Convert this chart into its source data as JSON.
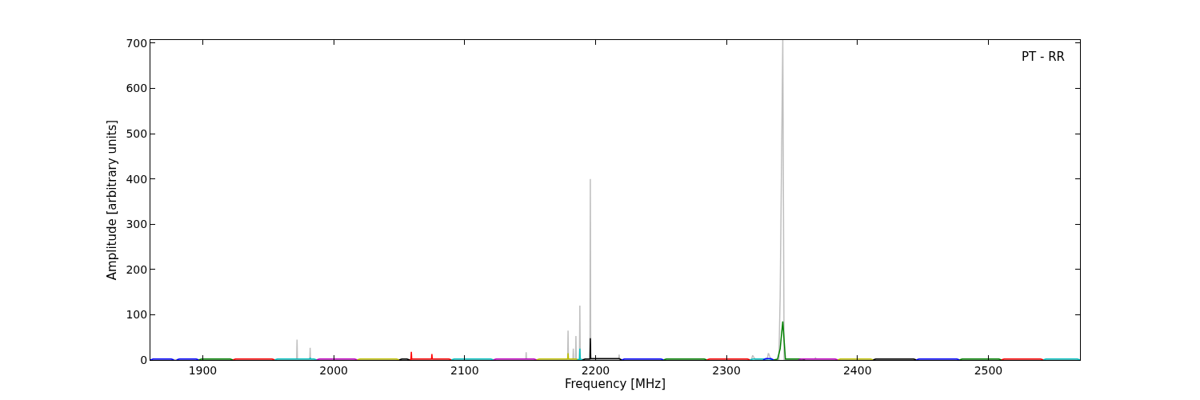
{
  "chart_data": {
    "type": "line",
    "xlabel": "Frequency [MHz]",
    "ylabel": "Amplitude [arbitrary units]",
    "annotations": [
      "PT - RR"
    ],
    "xlim": [
      1860,
      2570
    ],
    "ylim": [
      0,
      707
    ],
    "xticks": [
      1900,
      2000,
      2100,
      2200,
      2300,
      2400,
      2500
    ],
    "yticks": [
      0,
      100,
      200,
      300,
      400,
      500,
      600,
      700
    ],
    "marker": "none",
    "line_style": "solid",
    "series": [
      {
        "color": "#bfbfbf",
        "x": [
          1860,
          1971.7,
          1972,
          1972.3,
          1981.7,
          1982,
          1982.3,
          2146.7,
          2147,
          2147.3,
          2178.7,
          2179,
          2179.3,
          2182.7,
          2183,
          2183.3,
          2184.7,
          2185,
          2185.3,
          2187.7,
          2188,
          2188.3,
          2195.7,
          2196,
          2196.3,
          2217.7,
          2218,
          2218.3,
          2319,
          2320,
          2322,
          2331,
          2332,
          2334,
          2340,
          2341,
          2343,
          2344,
          2346,
          2367.7,
          2368,
          2368.3,
          2570
        ],
        "values": [
          1,
          1,
          45,
          1,
          1,
          27,
          1,
          1,
          17,
          1,
          1,
          65,
          1,
          1,
          25,
          1,
          1,
          53,
          1,
          1,
          120,
          1,
          1,
          400,
          1,
          1,
          12,
          1,
          1,
          10,
          1,
          1,
          15,
          1,
          1,
          140,
          707,
          1,
          1,
          1,
          6,
          1,
          1
        ]
      },
      {
        "color": "#0000ff",
        "x": [
          1860,
          1862,
          1876,
          1878
        ],
        "values": [
          0,
          2,
          2,
          0
        ]
      },
      {
        "color": "#0000ff",
        "x": [
          1880,
          1882,
          1895,
          1897
        ],
        "values": [
          0,
          2,
          2,
          0
        ]
      },
      {
        "color": "#008000",
        "x": [
          1897,
          1899,
          1921,
          1923
        ],
        "values": [
          0,
          2,
          2,
          0
        ]
      },
      {
        "color": "#ff0000",
        "x": [
          1923,
          1925,
          1953,
          1955
        ],
        "values": [
          0,
          2,
          2,
          0
        ]
      },
      {
        "color": "#00bfbf",
        "x": [
          1955,
          1957,
          1981.7,
          1982,
          1982.3,
          1985,
          1987
        ],
        "values": [
          0,
          2,
          2,
          5,
          2,
          2,
          0
        ]
      },
      {
        "color": "#bf00bf",
        "x": [
          1987,
          1989,
          2016,
          2018
        ],
        "values": [
          0,
          2,
          2,
          0
        ]
      },
      {
        "color": "#bfbf00",
        "x": [
          2018,
          2020,
          2048,
          2050
        ],
        "values": [
          0,
          2,
          2,
          0
        ]
      },
      {
        "color": "#000000",
        "x": [
          2050,
          2052,
          2056,
          2058
        ],
        "values": [
          0,
          2,
          2,
          0
        ]
      },
      {
        "color": "#ff0000",
        "x": [
          2058,
          2059,
          2059.3,
          2059.6,
          2074.7,
          2075,
          2075.3,
          2088,
          2090
        ],
        "values": [
          1,
          1,
          18,
          2,
          2,
          13,
          2,
          2,
          0
        ]
      },
      {
        "color": "#00bfbf",
        "x": [
          2090,
          2092,
          2120,
          2122
        ],
        "values": [
          0,
          2,
          2,
          0
        ]
      },
      {
        "color": "#bf00bf",
        "x": [
          2122,
          2124,
          2153,
          2155
        ],
        "values": [
          0,
          2,
          2,
          0
        ]
      },
      {
        "color": "#bfbf00",
        "x": [
          2155,
          2157,
          2178.7,
          2179,
          2179.3,
          2185,
          2187
        ],
        "values": [
          0,
          2,
          2,
          15,
          2,
          2,
          0
        ]
      },
      {
        "color": "#00bfbf",
        "x": [
          2186,
          2187.7,
          2188,
          2188.3,
          2190
        ],
        "values": [
          1,
          1,
          25,
          2,
          1
        ]
      },
      {
        "color": "#000000",
        "x": [
          2190,
          2192,
          2195.7,
          2196,
          2196.3,
          2218,
          2220
        ],
        "values": [
          0,
          2,
          2,
          48,
          3,
          3,
          0
        ]
      },
      {
        "color": "#0000ff",
        "x": [
          2220,
          2222,
          2250,
          2252
        ],
        "values": [
          0,
          2,
          2,
          0
        ]
      },
      {
        "color": "#008000",
        "x": [
          2252,
          2254,
          2283,
          2285
        ],
        "values": [
          0,
          2,
          2,
          0
        ]
      },
      {
        "color": "#ff0000",
        "x": [
          2285,
          2287,
          2316,
          2318
        ],
        "values": [
          0,
          2,
          2,
          0
        ]
      },
      {
        "color": "#00bfbf",
        "x": [
          2318,
          2320,
          2333,
          2335
        ],
        "values": [
          0,
          2,
          2,
          0
        ]
      },
      {
        "color": "#0000ff",
        "x": [
          2328,
          2330,
          2334,
          2336
        ],
        "values": [
          0,
          3,
          3,
          0
        ]
      },
      {
        "color": "#008000",
        "x": [
          2336,
          2339,
          2341,
          2343,
          2345,
          2347,
          2358,
          2360
        ],
        "values": [
          0,
          2,
          25,
          85,
          2,
          2,
          2,
          0
        ]
      },
      {
        "color": "#bf00bf",
        "x": [
          2355,
          2357,
          2383,
          2385
        ],
        "values": [
          0,
          2,
          2,
          0
        ]
      },
      {
        "color": "#bfbf00",
        "x": [
          2385,
          2387,
          2410,
          2412
        ],
        "values": [
          0,
          2,
          2,
          0
        ]
      },
      {
        "color": "#000000",
        "x": [
          2412,
          2414,
          2443,
          2445
        ],
        "values": [
          0,
          2,
          2,
          0
        ]
      },
      {
        "color": "#0000ff",
        "x": [
          2445,
          2447,
          2476,
          2478
        ],
        "values": [
          0,
          2,
          2,
          0
        ]
      },
      {
        "color": "#008000",
        "x": [
          2478,
          2480,
          2508,
          2510
        ],
        "values": [
          0,
          2,
          2,
          0
        ]
      },
      {
        "color": "#ff0000",
        "x": [
          2510,
          2512,
          2540,
          2542
        ],
        "values": [
          0,
          2,
          2,
          0
        ]
      },
      {
        "color": "#00bfbf",
        "x": [
          2542,
          2544,
          2568,
          2570
        ],
        "values": [
          0,
          2,
          2,
          0
        ]
      }
    ]
  }
}
